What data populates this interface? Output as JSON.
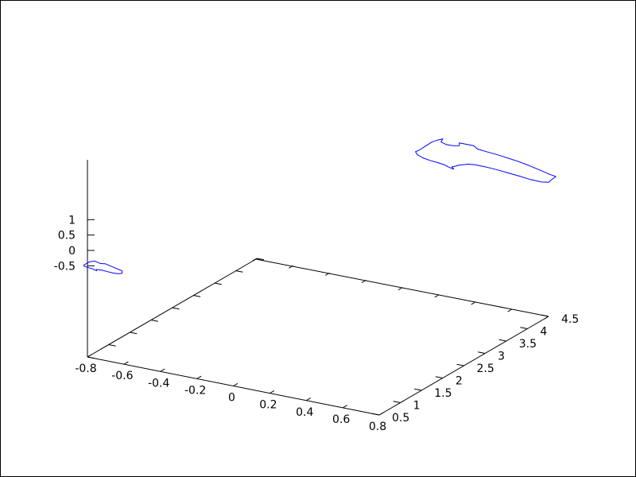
{
  "chart_data": {
    "type": "line",
    "projection": "3d-wireframe",
    "title": "",
    "xlabel": "",
    "ylabel": "",
    "zlabel": "",
    "grid": false,
    "legend": "none",
    "x_ticks": [
      "-0.8",
      "-0.6",
      "-0.4",
      "-0.2",
      "0",
      "0.2",
      "0.4",
      "0.6",
      "0.8"
    ],
    "y_ticks": [
      "0.5",
      "1",
      "1.5",
      "2",
      "2.5",
      "3",
      "3.5",
      "4",
      "4.5"
    ],
    "z_ticks": [
      "-0.5",
      "0",
      "0.5",
      "1"
    ],
    "xlim": [
      -0.8,
      0.8
    ],
    "ylim": [
      0.5,
      4.5
    ],
    "series": [
      {
        "color": "#0000ff",
        "points": [
          [
            -0.82,
            0.5,
            -0.5
          ],
          [
            -0.79,
            0.5,
            -0.36
          ],
          [
            -0.76,
            0.5,
            -0.3
          ],
          [
            -0.73,
            0.5,
            -0.34
          ],
          [
            -0.7,
            0.5,
            -0.32
          ],
          [
            -0.67,
            0.5,
            -0.36
          ],
          [
            -0.64,
            0.5,
            -0.4
          ],
          [
            -0.61,
            0.5,
            -0.44
          ],
          [
            -0.61,
            0.5,
            -0.52
          ],
          [
            -0.63,
            0.5,
            -0.56
          ],
          [
            -0.66,
            0.5,
            -0.57
          ],
          [
            -0.69,
            0.5,
            -0.56
          ],
          [
            -0.72,
            0.5,
            -0.55
          ],
          [
            -0.75,
            0.5,
            -0.56
          ],
          [
            -0.75,
            0.5,
            -0.6
          ],
          [
            -0.77,
            0.5,
            -0.57
          ],
          [
            -0.8,
            0.5,
            -0.55
          ],
          [
            -0.82,
            0.5,
            -0.53
          ],
          [
            -0.82,
            0.5,
            -0.5
          ]
        ]
      },
      {
        "color": "#0000ff",
        "points": [
          [
            0.09,
            4.5,
            1.1
          ],
          [
            0.13,
            4.5,
            1.3
          ],
          [
            0.16,
            4.5,
            1.45
          ],
          [
            0.19,
            4.5,
            1.55
          ],
          [
            0.22,
            4.5,
            1.62
          ],
          [
            0.21,
            4.5,
            1.51
          ],
          [
            0.24,
            4.5,
            1.46
          ],
          [
            0.28,
            4.5,
            1.47
          ],
          [
            0.31,
            4.5,
            1.51
          ],
          [
            0.31,
            4.5,
            1.6
          ],
          [
            0.35,
            4.5,
            1.6
          ],
          [
            0.39,
            4.5,
            1.6
          ],
          [
            0.41,
            4.5,
            1.52
          ],
          [
            0.46,
            4.5,
            1.49
          ],
          [
            0.52,
            4.5,
            1.46
          ],
          [
            0.58,
            4.5,
            1.42
          ],
          [
            0.63,
            4.5,
            1.38
          ],
          [
            0.69,
            4.5,
            1.32
          ],
          [
            0.75,
            4.5,
            1.24
          ],
          [
            0.8,
            4.5,
            1.17
          ],
          [
            0.84,
            4.5,
            1.13
          ],
          [
            0.82,
            4.5,
            1.02
          ],
          [
            0.8,
            4.5,
            0.9
          ],
          [
            0.76,
            4.5,
            0.86
          ],
          [
            0.7,
            4.5,
            0.87
          ],
          [
            0.64,
            4.5,
            0.91
          ],
          [
            0.58,
            4.5,
            0.94
          ],
          [
            0.52,
            4.5,
            0.97
          ],
          [
            0.46,
            4.5,
            0.99
          ],
          [
            0.4,
            4.5,
            0.99
          ],
          [
            0.36,
            4.5,
            0.97
          ],
          [
            0.34,
            4.5,
            0.93
          ],
          [
            0.31,
            4.5,
            0.88
          ],
          [
            0.29,
            4.5,
            0.82
          ],
          [
            0.27,
            4.5,
            0.77
          ],
          [
            0.28,
            4.5,
            0.71
          ],
          [
            0.25,
            4.5,
            0.75
          ],
          [
            0.23,
            4.5,
            0.79
          ],
          [
            0.19,
            4.5,
            0.82
          ],
          [
            0.15,
            4.5,
            0.84
          ],
          [
            0.11,
            4.5,
            0.88
          ],
          [
            0.08,
            4.5,
            0.95
          ],
          [
            0.07,
            4.5,
            1.03
          ],
          [
            0.09,
            4.5,
            1.1
          ]
        ]
      }
    ]
  }
}
